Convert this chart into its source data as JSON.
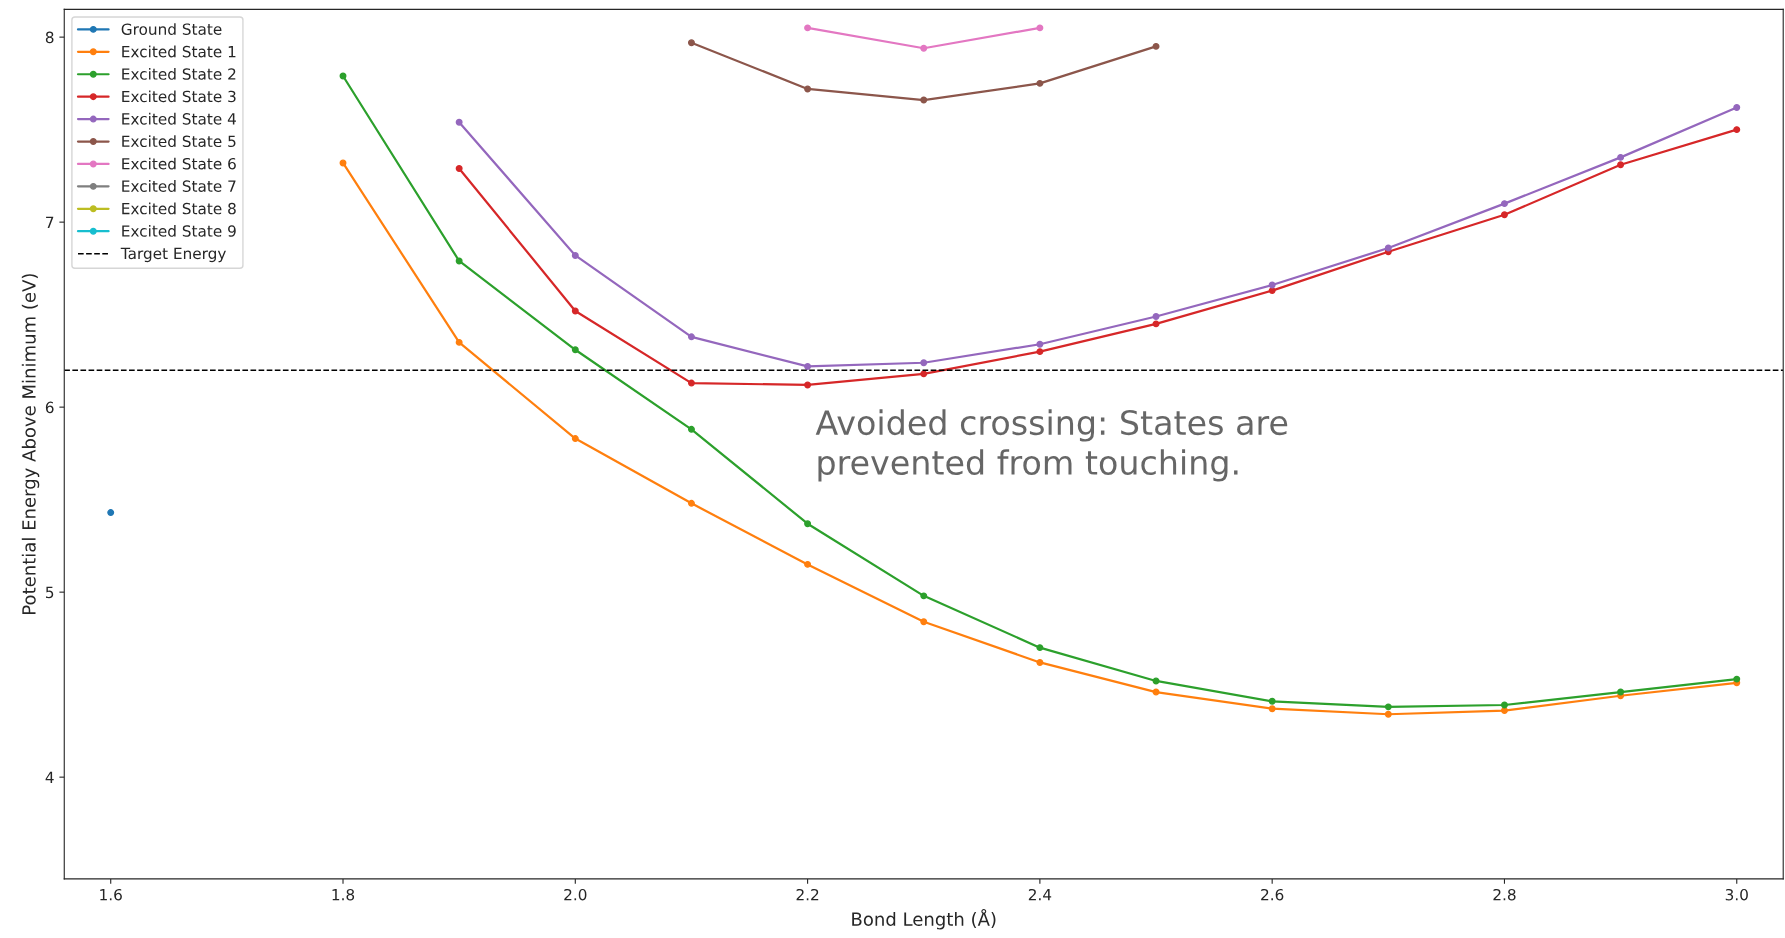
{
  "chart_data": {
    "type": "line",
    "xlabel": "Bond Length (Å)",
    "ylabel": "Potential Energy Above Minimum (eV)",
    "x": [
      1.6,
      1.7,
      1.8,
      1.9,
      2.0,
      2.1,
      2.2,
      2.3,
      2.4,
      2.5,
      2.6,
      2.7,
      2.8,
      2.9,
      3.0
    ],
    "series": [
      {
        "name": "Ground State",
        "color": "#1f77b4",
        "values": [
          5.43,
          null,
          null,
          null,
          null,
          null,
          null,
          null,
          null,
          null,
          null,
          null,
          null,
          null,
          null
        ]
      },
      {
        "name": "Excited State 1",
        "color": "#ff7f0e",
        "values": [
          null,
          null,
          7.32,
          6.35,
          5.83,
          5.48,
          5.15,
          4.84,
          4.62,
          4.46,
          4.37,
          4.34,
          4.36,
          4.44,
          4.51
        ]
      },
      {
        "name": "Excited State 2",
        "color": "#2ca02c",
        "values": [
          null,
          null,
          7.79,
          6.79,
          6.31,
          5.88,
          5.37,
          4.98,
          4.7,
          4.52,
          4.41,
          4.38,
          4.39,
          4.46,
          4.53
        ]
      },
      {
        "name": "Excited State 3",
        "color": "#d62728",
        "values": [
          null,
          null,
          null,
          7.29,
          6.52,
          6.13,
          6.12,
          6.18,
          6.3,
          6.45,
          6.63,
          6.84,
          7.04,
          7.31,
          7.5
        ]
      },
      {
        "name": "Excited State 4",
        "color": "#9467bd",
        "values": [
          null,
          null,
          null,
          7.54,
          6.82,
          6.38,
          6.22,
          6.24,
          6.34,
          6.49,
          6.66,
          6.86,
          7.1,
          7.35,
          7.62
        ]
      },
      {
        "name": "Excited State 5",
        "color": "#8c564b",
        "values": [
          null,
          null,
          null,
          null,
          null,
          7.97,
          7.72,
          7.66,
          7.75,
          7.95,
          null,
          null,
          null,
          null,
          null
        ]
      },
      {
        "name": "Excited State 6",
        "color": "#e377c2",
        "values": [
          null,
          null,
          null,
          null,
          null,
          null,
          8.05,
          7.94,
          8.05,
          null,
          null,
          null,
          null,
          null,
          null
        ]
      },
      {
        "name": "Excited State 7",
        "color": "#7f7f7f",
        "values": [
          null,
          null,
          null,
          null,
          null,
          null,
          null,
          null,
          null,
          null,
          null,
          null,
          null,
          null,
          null
        ]
      },
      {
        "name": "Excited State 8",
        "color": "#bcbd22",
        "values": [
          null,
          null,
          null,
          null,
          null,
          null,
          null,
          null,
          null,
          null,
          null,
          null,
          null,
          null,
          null
        ]
      },
      {
        "name": "Excited State 9",
        "color": "#17becf",
        "values": [
          null,
          null,
          null,
          null,
          null,
          null,
          null,
          null,
          null,
          null,
          null,
          null,
          null,
          null,
          null
        ]
      }
    ],
    "ref_lines": [
      {
        "axis": "y",
        "value": 6.2,
        "label": "Target Energy",
        "color": "#000000",
        "line_style": "dashed"
      }
    ],
    "annotations": [
      "Avoided crossing: States are\nprevented from touching."
    ],
    "xlim": [
      1.56,
      3.04
    ],
    "ylim": [
      3.45,
      8.15
    ],
    "xticks": [
      {
        "value": 1.6,
        "label": "1.6"
      },
      {
        "value": 1.8,
        "label": "1.8"
      },
      {
        "value": 2.0,
        "label": "2.0"
      },
      {
        "value": 2.2,
        "label": "2.2"
      },
      {
        "value": 2.4,
        "label": "2.4"
      },
      {
        "value": 2.6,
        "label": "2.6"
      },
      {
        "value": 2.8,
        "label": "2.8"
      },
      {
        "value": 3.0,
        "label": "3.0"
      }
    ],
    "yticks": [
      4,
      5,
      6,
      7,
      8
    ],
    "marker": "circle",
    "line_style": "solid",
    "grid": false,
    "legend": "top left"
  }
}
